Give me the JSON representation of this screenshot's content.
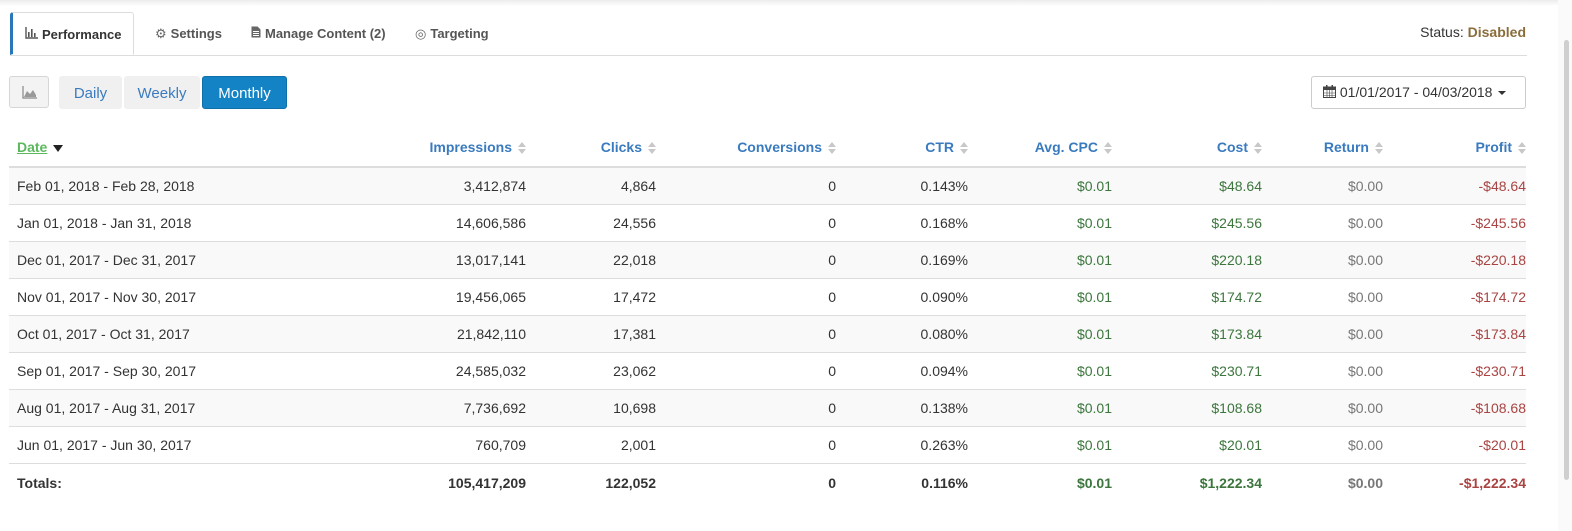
{
  "tabs": [
    {
      "icon": "bar-chart-icon",
      "glyph": "📊",
      "label": "Performance"
    },
    {
      "icon": "gear-icon",
      "glyph": "⚙",
      "label": "Settings"
    },
    {
      "icon": "document-icon",
      "glyph": "▤",
      "label": "Manage Content (2)"
    },
    {
      "icon": "target-icon",
      "glyph": "◎",
      "label": "Targeting"
    }
  ],
  "status": {
    "label": "Status:",
    "value": "Disabled"
  },
  "toolbar": {
    "chart_toggle_icon": "area-chart-icon",
    "periods": [
      "Daily",
      "Weekly",
      "Monthly"
    ],
    "selected_period": "Monthly",
    "date_range": "01/01/2017 - 04/03/2018",
    "date_range_icon": "calendar-icon"
  },
  "table": {
    "columns": [
      "Date",
      "Impressions",
      "Clicks",
      "Conversions",
      "CTR",
      "Avg. CPC",
      "Cost",
      "Return",
      "Profit"
    ],
    "sorted_column": "Date",
    "sort_direction": "desc",
    "rows": [
      [
        "Feb 01, 2018 - Feb 28, 2018",
        "3,412,874",
        "4,864",
        "0",
        "0.143%",
        "$0.01",
        "$48.64",
        "$0.00",
        "-$48.64"
      ],
      [
        "Jan 01, 2018 - Jan 31, 2018",
        "14,606,586",
        "24,556",
        "0",
        "0.168%",
        "$0.01",
        "$245.56",
        "$0.00",
        "-$245.56"
      ],
      [
        "Dec 01, 2017 - Dec 31, 2017",
        "13,017,141",
        "22,018",
        "0",
        "0.169%",
        "$0.01",
        "$220.18",
        "$0.00",
        "-$220.18"
      ],
      [
        "Nov 01, 2017 - Nov 30, 2017",
        "19,456,065",
        "17,472",
        "0",
        "0.090%",
        "$0.01",
        "$174.72",
        "$0.00",
        "-$174.72"
      ],
      [
        "Oct 01, 2017 - Oct 31, 2017",
        "21,842,110",
        "17,381",
        "0",
        "0.080%",
        "$0.01",
        "$173.84",
        "$0.00",
        "-$173.84"
      ],
      [
        "Sep 01, 2017 - Sep 30, 2017",
        "24,585,032",
        "23,062",
        "0",
        "0.094%",
        "$0.01",
        "$230.71",
        "$0.00",
        "-$230.71"
      ],
      [
        "Aug 01, 2017 - Aug 31, 2017",
        "7,736,692",
        "10,698",
        "0",
        "0.138%",
        "$0.01",
        "$108.68",
        "$0.00",
        "-$108.68"
      ],
      [
        "Jun 01, 2017 - Jun 30, 2017",
        "760,709",
        "2,001",
        "0",
        "0.263%",
        "$0.01",
        "$20.01",
        "$0.00",
        "-$20.01"
      ]
    ],
    "totals": [
      "Totals:",
      "105,417,209",
      "122,052",
      "0",
      "0.116%",
      "$0.01",
      "$1,222.34",
      "$0.00",
      "-$1,222.34"
    ]
  },
  "colors": {
    "accent": "#1383c6",
    "link": "#3a7bbf",
    "positive": "#3c763d",
    "negative": "#a94442",
    "status": "#8a6d3b"
  }
}
